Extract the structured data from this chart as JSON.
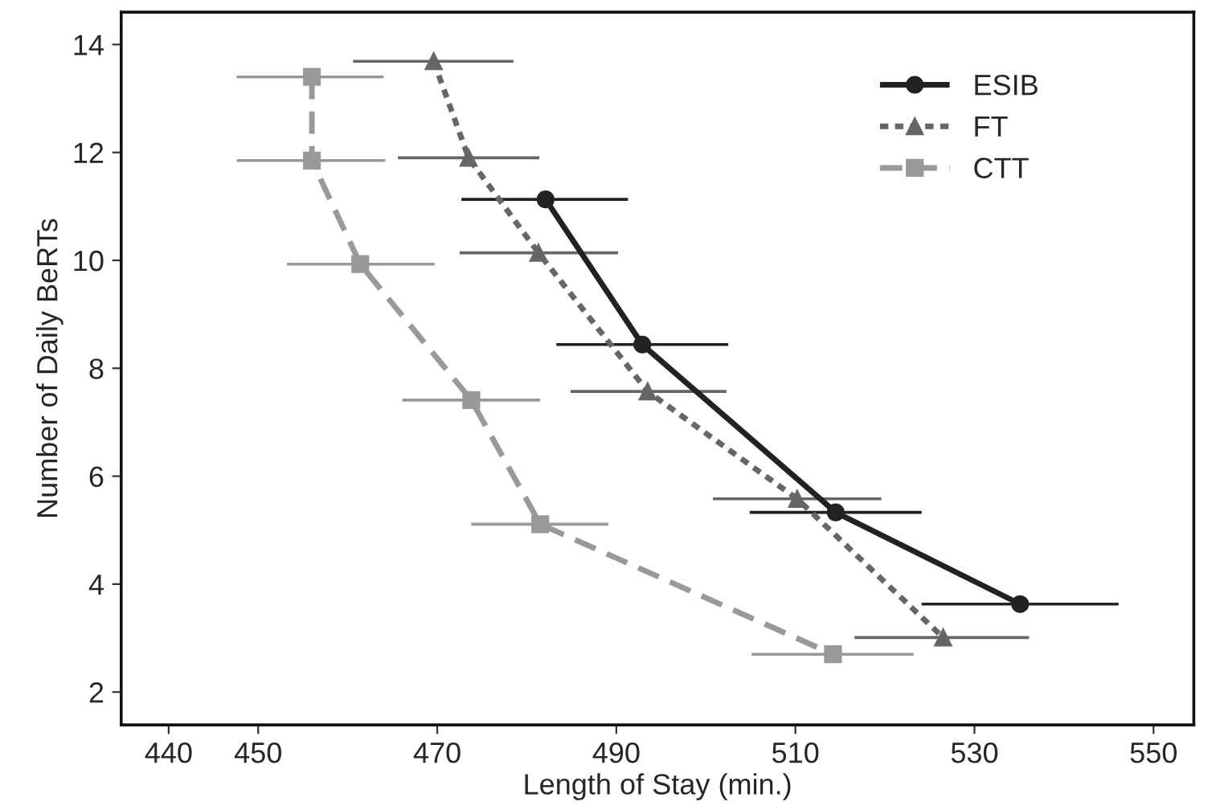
{
  "chart_data": {
    "type": "line",
    "xlabel": "Length of Stay (min.)",
    "ylabel": "Number of Daily BeRTs",
    "xlim": [
      434.7,
      554.5
    ],
    "ylim": [
      1.39,
      14.6
    ],
    "xticks": [
      440,
      450,
      470,
      490,
      510,
      530,
      550
    ],
    "yticks": [
      2,
      4,
      6,
      8,
      10,
      12,
      14
    ],
    "grid": false,
    "legend": "top right",
    "series": [
      {
        "name": "ESIB",
        "color": "#222222",
        "marker": "circle",
        "line_style": "solid",
        "x": [
          482.1,
          492.9,
          514.5,
          535.1
        ],
        "values": [
          11.13,
          8.44,
          5.33,
          3.63
        ],
        "xerrors": [
          [
            472.7,
            491.3
          ],
          [
            483.3,
            502.5
          ],
          [
            504.9,
            524.1
          ],
          [
            524.1,
            546.1
          ]
        ]
      },
      {
        "name": "FT",
        "color": "#666666",
        "marker": "triangle",
        "line_style": "dotted",
        "x": [
          469.6,
          473.5,
          481.3,
          493.5,
          510.2,
          526.5
        ],
        "values": [
          13.69,
          11.9,
          10.14,
          7.57,
          5.58,
          3.01
        ],
        "xerrors": [
          [
            460.6,
            478.5
          ],
          [
            465.6,
            481.4
          ],
          [
            472.5,
            490.2
          ],
          [
            484.9,
            502.3
          ],
          [
            500.8,
            519.6
          ],
          [
            516.6,
            536.1
          ]
        ]
      },
      {
        "name": "CTT",
        "color": "#999999",
        "marker": "square",
        "line_style": "dashed",
        "x": [
          456.0,
          456.0,
          461.4,
          473.8,
          481.5,
          514.2
        ],
        "values": [
          13.4,
          11.85,
          9.93,
          7.41,
          5.11,
          2.7
        ],
        "xerrors": [
          [
            447.6,
            464.0
          ],
          [
            447.6,
            464.2
          ],
          [
            453.2,
            469.7
          ],
          [
            466.1,
            481.5
          ],
          [
            473.8,
            489.1
          ],
          [
            505.1,
            523.2
          ]
        ]
      }
    ]
  }
}
